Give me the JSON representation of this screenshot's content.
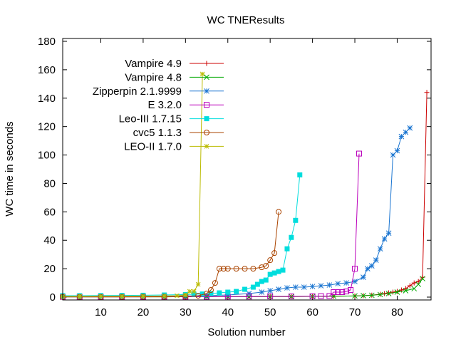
{
  "chart_data": {
    "type": "line",
    "title": "WC TNEResults",
    "xlabel": "Solution number",
    "ylabel": "WC time in seconds",
    "xlim": [
      1,
      88
    ],
    "ylim": [
      -2,
      182
    ],
    "xticks": [
      "10",
      "20",
      "30",
      "40",
      "50",
      "60",
      "70",
      "80"
    ],
    "yticks": [
      "0",
      "20",
      "40",
      "60",
      "80",
      "100",
      "120",
      "140",
      "160",
      "180"
    ],
    "legend_position": "top-left",
    "series": [
      {
        "name": "Vampire 4.9",
        "color": "#cc0000",
        "marker": "plus",
        "x": [
          1,
          5,
          10,
          15,
          20,
          25,
          30,
          35,
          40,
          45,
          50,
          55,
          60,
          65,
          70,
          72,
          74,
          76,
          77,
          78,
          79,
          80,
          81,
          82,
          83,
          84,
          85,
          86,
          87
        ],
        "y": [
          0.2,
          0.2,
          0.2,
          0.2,
          0.2,
          0.2,
          0.3,
          0.3,
          0.3,
          0.3,
          0.4,
          0.4,
          0.5,
          0.6,
          0.8,
          1.0,
          1.4,
          2.0,
          2.5,
          3.0,
          3.5,
          4.0,
          5.0,
          6.0,
          8.0,
          10.0,
          11.0,
          14.0,
          144.0
        ]
      },
      {
        "name": "Vampire 4.8",
        "color": "#00aa00",
        "marker": "x",
        "x": [
          1,
          5,
          10,
          15,
          20,
          25,
          30,
          35,
          40,
          45,
          50,
          55,
          60,
          65,
          70,
          72,
          74,
          76,
          78,
          80,
          82,
          84,
          85,
          86
        ],
        "y": [
          0.2,
          0.2,
          0.2,
          0.2,
          0.2,
          0.2,
          0.3,
          0.3,
          0.3,
          0.3,
          0.4,
          0.4,
          0.5,
          0.6,
          0.8,
          1.0,
          1.3,
          1.8,
          2.5,
          3.5,
          4.5,
          6.0,
          9.0,
          13.0
        ]
      },
      {
        "name": "Zipperpin 2.1.9999",
        "color": "#1a75d1",
        "marker": "star",
        "x": [
          1,
          5,
          10,
          15,
          20,
          25,
          30,
          35,
          40,
          45,
          48,
          50,
          52,
          54,
          56,
          58,
          60,
          62,
          64,
          66,
          68,
          70,
          72,
          73,
          74,
          75,
          76,
          77,
          78,
          79,
          80,
          81,
          82,
          83
        ],
        "y": [
          0.3,
          0.3,
          0.4,
          0.4,
          0.5,
          0.6,
          0.8,
          1.0,
          1.5,
          2.5,
          3.5,
          4.5,
          5.5,
          6.5,
          7.0,
          7.0,
          7.5,
          8.0,
          8.5,
          9.5,
          10.0,
          11.0,
          14.0,
          20.0,
          22.0,
          26.0,
          34.0,
          41.0,
          45.0,
          100.0,
          103.0,
          113.0,
          116.0,
          119.0
        ]
      },
      {
        "name": "E 3.2.0",
        "color": "#bb00bb",
        "marker": "square-open",
        "x": [
          1,
          5,
          10,
          15,
          20,
          25,
          30,
          35,
          40,
          45,
          50,
          55,
          60,
          62,
          64,
          65,
          66,
          67,
          68,
          69,
          70,
          71
        ],
        "y": [
          0.2,
          0.2,
          0.2,
          0.2,
          0.2,
          0.3,
          0.3,
          0.3,
          0.4,
          0.4,
          0.5,
          0.5,
          0.6,
          0.7,
          0.8,
          3.5,
          3.5,
          3.5,
          4.0,
          5.0,
          20.0,
          101.0
        ]
      },
      {
        "name": "Leo-III 1.7.15",
        "color": "#00dddd",
        "marker": "square",
        "x": [
          1,
          5,
          10,
          15,
          20,
          25,
          30,
          32,
          34,
          36,
          38,
          40,
          42,
          44,
          46,
          47,
          48,
          49,
          50,
          51,
          52,
          53,
          54,
          55,
          56,
          57
        ],
        "y": [
          1.0,
          1.0,
          1.1,
          1.2,
          1.3,
          1.5,
          1.8,
          2.0,
          2.2,
          2.5,
          3.0,
          3.5,
          4.0,
          5.5,
          7.0,
          9.0,
          11.0,
          12.0,
          16.0,
          17.0,
          18.0,
          19.0,
          34.0,
          42.0,
          54.0,
          86.0
        ]
      },
      {
        "name": "cvc5 1.1.3",
        "color": "#aa4400",
        "marker": "circle-open",
        "x": [
          1,
          5,
          10,
          15,
          20,
          25,
          30,
          33,
          35,
          36,
          37,
          38,
          39,
          40,
          42,
          44,
          46,
          48,
          49,
          50,
          51,
          52
        ],
        "y": [
          0.2,
          0.2,
          0.2,
          0.2,
          0.3,
          0.3,
          0.5,
          1.0,
          2.5,
          5.0,
          10.0,
          20.0,
          20.0,
          20.0,
          20.0,
          20.0,
          20.0,
          21.0,
          22.0,
          26.0,
          31.0,
          60.0
        ]
      },
      {
        "name": "LEO-II 1.7.0",
        "color": "#bbbb00",
        "marker": "star-small",
        "x": [
          1,
          5,
          10,
          15,
          20,
          25,
          28,
          30,
          31,
          32,
          33,
          34
        ],
        "y": [
          0.5,
          0.5,
          0.6,
          0.6,
          0.7,
          0.8,
          1.0,
          1.5,
          4.0,
          4.0,
          9.0,
          157.0
        ]
      }
    ]
  }
}
